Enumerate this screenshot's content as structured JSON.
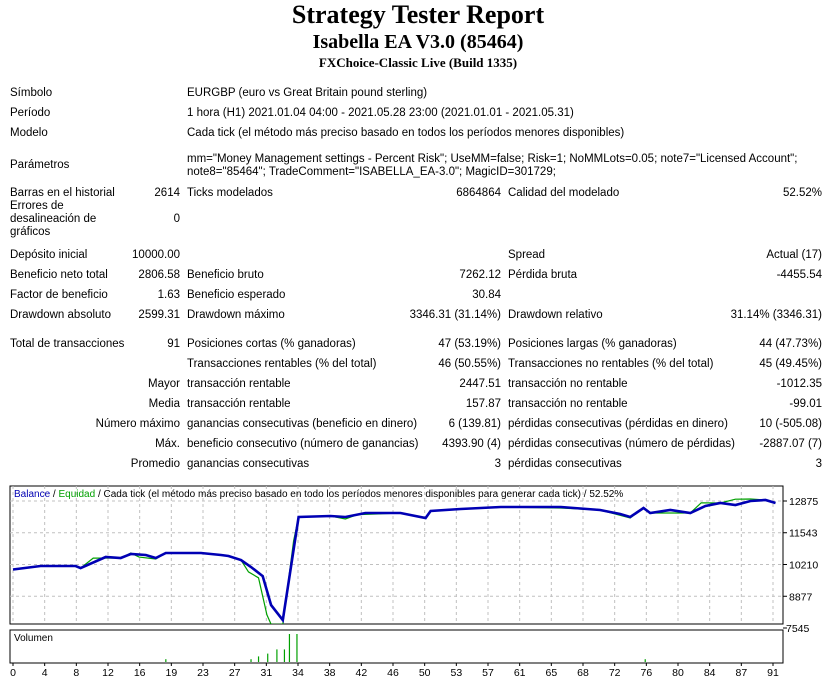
{
  "header": {
    "title": "Strategy Tester Report",
    "subtitle": "Isabella EA V3.0 (85464)",
    "server": "FXChoice-Classic Live (Build 1335)"
  },
  "info": {
    "symbol_label": "Símbolo",
    "symbol_value": "EURGBP (euro vs Great Britain pound sterling)",
    "period_label": "Período",
    "period_value": "1 hora (H1) 2021.01.04 04:00 - 2021.05.28 23:00 (2021.01.01 - 2021.05.31)",
    "model_label": "Modelo",
    "model_value": "Cada tick (el método más preciso basado en todos los períodos menores disponibles)",
    "params_label": "Parámetros",
    "params_line1": "mm=\"Money Management settings - Percent Risk\"; UseMM=false; Risk=1; NoMMLots=0.05; note7=\"Licensed Account\";",
    "params_line2": "note8=\"85464\"; TradeComment=\"ISABELLA_EA-3.0\"; MagicID=301729;"
  },
  "stats": [
    [
      {
        "l": "Barras en el historial",
        "v": "2614"
      },
      {
        "l": "Ticks modelados",
        "v": "6864864"
      },
      {
        "l": "Calidad del modelado",
        "v": "52.52%"
      }
    ],
    [
      {
        "l": "Errores de desalineación de gráficos",
        "v": "0"
      },
      {
        "l": "",
        "v": ""
      },
      {
        "l": "",
        "v": ""
      }
    ],
    [
      {
        "l": "Depósito inicial",
        "v": "10000.00"
      },
      {
        "l": "",
        "v": ""
      },
      {
        "l": "Spread",
        "v": "Actual (17)"
      }
    ],
    [
      {
        "l": "Beneficio neto total",
        "v": "2806.58"
      },
      {
        "l": "Beneficio bruto",
        "v": "7262.12"
      },
      {
        "l": "Pérdida bruta",
        "v": "-4455.54"
      }
    ],
    [
      {
        "l": "Factor de beneficio",
        "v": "1.63"
      },
      {
        "l": "Beneficio esperado",
        "v": "30.84"
      },
      {
        "l": "",
        "v": ""
      }
    ],
    [
      {
        "l": "Drawdown absoluto",
        "v": "2599.31"
      },
      {
        "l": "Drawdown máximo",
        "v": "3346.31 (31.14%)"
      },
      {
        "l": "Drawdown relativo",
        "v": "31.14% (3346.31)"
      }
    ],
    [
      {
        "l": "Total de transacciones",
        "v": "91"
      },
      {
        "l": "Posiciones cortas (% ganadoras)",
        "v": "47 (53.19%)"
      },
      {
        "l": "Posiciones largas (% ganadoras)",
        "v": "44 (47.73%)"
      }
    ],
    [
      {
        "l": "",
        "v": ""
      },
      {
        "l": "Transacciones rentables (% del total)",
        "v": "46 (50.55%)"
      },
      {
        "l": "Transacciones no rentables (% del total)",
        "v": "45 (49.45%)"
      }
    ],
    [
      {
        "l": "Mayor",
        "v": ""
      },
      {
        "l": "transacción rentable",
        "v": "2447.51"
      },
      {
        "l": "transacción no rentable",
        "v": "-1012.35"
      }
    ],
    [
      {
        "l": "Media",
        "v": ""
      },
      {
        "l": "transacción rentable",
        "v": "157.87"
      },
      {
        "l": "transacción no rentable",
        "v": "-99.01"
      }
    ],
    [
      {
        "l": "Número máximo",
        "v": ""
      },
      {
        "l": "ganancias consecutivas (beneficio en dinero)",
        "v": "6 (139.81)"
      },
      {
        "l": "pérdidas consecutivas (pérdidas en dinero)",
        "v": "10 (-505.08)"
      }
    ],
    [
      {
        "l": "Máx.",
        "v": ""
      },
      {
        "l": "beneficio consecutivo (número de ganancias)",
        "v": "4393.90 (4)"
      },
      {
        "l": "pérdidas consecutivas (número de pérdidas)",
        "v": "-2887.07 (7)"
      }
    ],
    [
      {
        "l": "Promedio",
        "v": ""
      },
      {
        "l": "ganancias consecutivas",
        "v": "3"
      },
      {
        "l": "pérdidas consecutivas",
        "v": "3"
      }
    ]
  ],
  "chart_data": {
    "type": "line",
    "legend": {
      "balance": "Balance",
      "sep1": " / ",
      "equity": "Equidad",
      "rest": " / Cada tick (el método más preciso basado en todo los períodos menores disponibles para generar cada tick)  / 52.52%"
    },
    "colors": {
      "balance": "#0000b4",
      "equity": "#00a000",
      "volume": "#00a000",
      "grid": "#c0c0c0"
    },
    "yticks": [
      "12875",
      "11543",
      "10210",
      "8877",
      "7545"
    ],
    "ylim": [
      7545,
      12875
    ],
    "xticks": [
      "0",
      "4",
      "8",
      "12",
      "16",
      "19",
      "23",
      "27",
      "31",
      "34",
      "38",
      "42",
      "46",
      "50",
      "53",
      "57",
      "61",
      "65",
      "68",
      "72",
      "76",
      "80",
      "84",
      "87",
      "91"
    ],
    "xlim": [
      0,
      91
    ],
    "grid": true,
    "series": [
      {
        "name": "Balance",
        "points": [
          [
            0,
            10000
          ],
          [
            3.3,
            10145
          ],
          [
            7.5,
            10145
          ],
          [
            8.1,
            10061
          ],
          [
            11.1,
            10523
          ],
          [
            12.9,
            10481
          ],
          [
            14.1,
            10649
          ],
          [
            15.9,
            10607
          ],
          [
            17.1,
            10481
          ],
          [
            18.3,
            10691
          ],
          [
            22.5,
            10691
          ],
          [
            24.9,
            10607
          ],
          [
            25.8,
            10565
          ],
          [
            27.3,
            10397
          ],
          [
            28.5,
            10103
          ],
          [
            29.9,
            9725
          ],
          [
            30.9,
            8507
          ],
          [
            32.3,
            7877
          ],
          [
            34.2,
            12203
          ],
          [
            38,
            12245
          ],
          [
            39.8,
            12203
          ],
          [
            42.2,
            12371
          ],
          [
            46.4,
            12371
          ],
          [
            49.4,
            12161
          ],
          [
            50,
            12455
          ],
          [
            53.6,
            12539
          ],
          [
            58.4,
            12623
          ],
          [
            65.6,
            12623
          ],
          [
            70.3,
            12497
          ],
          [
            72.7,
            12329
          ],
          [
            73.9,
            12203
          ],
          [
            75.5,
            12581
          ],
          [
            76.3,
            12371
          ],
          [
            78.7,
            12497
          ],
          [
            81.1,
            12371
          ],
          [
            82.9,
            12665
          ],
          [
            84.7,
            12791
          ],
          [
            86.5,
            12707
          ],
          [
            88.3,
            12875
          ],
          [
            90.1,
            12917
          ],
          [
            91.3,
            12791
          ]
        ]
      },
      {
        "name": "Equidad",
        "points": [
          [
            0,
            10000
          ],
          [
            1.5,
            10060
          ],
          [
            3.3,
            10145
          ],
          [
            7.5,
            10145
          ],
          [
            8.1,
            10061
          ],
          [
            9.6,
            10480
          ],
          [
            12.9,
            10481
          ],
          [
            14.1,
            10690
          ],
          [
            15.1,
            10520
          ],
          [
            17.1,
            10440
          ],
          [
            18.3,
            10691
          ],
          [
            22.5,
            10691
          ],
          [
            25.8,
            10565
          ],
          [
            27.3,
            10397
          ],
          [
            28.2,
            9900
          ],
          [
            29.4,
            9650
          ],
          [
            30.4,
            8100
          ],
          [
            30.9,
            7700
          ],
          [
            32.3,
            7700
          ],
          [
            33.6,
            11200
          ],
          [
            34.2,
            12203
          ],
          [
            38,
            12245
          ],
          [
            39.8,
            12120
          ],
          [
            41.2,
            12300
          ],
          [
            46.4,
            12371
          ],
          [
            49.4,
            12161
          ],
          [
            50,
            12455
          ],
          [
            58.4,
            12623
          ],
          [
            65.6,
            12580
          ],
          [
            70.3,
            12497
          ],
          [
            73.9,
            12160
          ],
          [
            75.5,
            12581
          ],
          [
            76.3,
            12371
          ],
          [
            81.1,
            12371
          ],
          [
            82.4,
            12800
          ],
          [
            84.7,
            12791
          ],
          [
            86.5,
            12950
          ],
          [
            88.3,
            12960
          ],
          [
            90.1,
            12917
          ],
          [
            91.3,
            12791
          ]
        ]
      }
    ],
    "volume": {
      "label": "Volumen",
      "bars": [
        [
          18.3,
          0.1
        ],
        [
          28.5,
          0.1
        ],
        [
          29.4,
          0.2
        ],
        [
          30.5,
          0.3
        ],
        [
          31.6,
          0.45
        ],
        [
          32.5,
          0.45
        ],
        [
          33.1,
          1
        ],
        [
          34,
          1
        ],
        [
          75.7,
          0.1
        ]
      ]
    }
  }
}
